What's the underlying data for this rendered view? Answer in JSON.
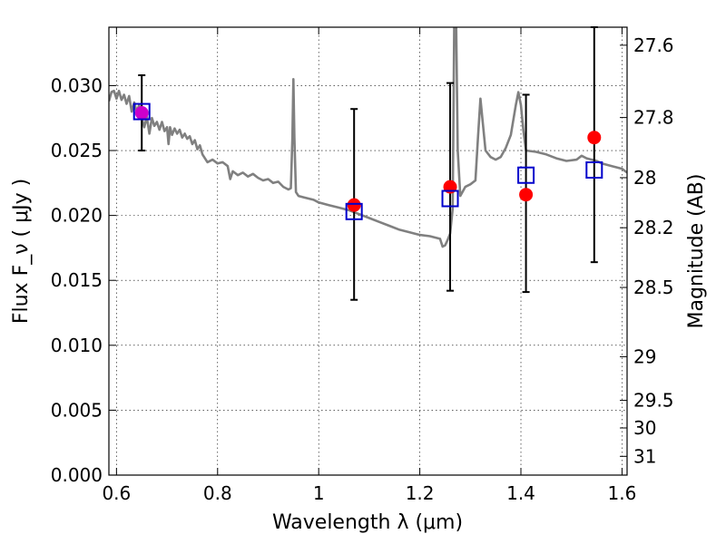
{
  "chart_data": {
    "type": "scatter",
    "xlabel": "Wavelength  λ (μm)",
    "ylabel": "Flux  F_ν  ( μJy )",
    "y2label": "Magnitude (AB)",
    "xlim": [
      0.585,
      1.61
    ],
    "ylim": [
      0.0,
      0.0345
    ],
    "grid": true,
    "x_ticks": [
      {
        "value": 0.6,
        "label": "0.6"
      },
      {
        "value": 0.8,
        "label": "0.8"
      },
      {
        "value": 1.0,
        "label": "1"
      },
      {
        "value": 1.2,
        "label": "1.2"
      },
      {
        "value": 1.4,
        "label": "1.4"
      },
      {
        "value": 1.6,
        "label": "1.6"
      }
    ],
    "y_ticks": [
      {
        "value": 0.0,
        "label": "0.000"
      },
      {
        "value": 0.005,
        "label": "0.005"
      },
      {
        "value": 0.01,
        "label": "0.010"
      },
      {
        "value": 0.015,
        "label": "0.015"
      },
      {
        "value": 0.02,
        "label": "0.020"
      },
      {
        "value": 0.025,
        "label": "0.025"
      },
      {
        "value": 0.03,
        "label": "0.030"
      }
    ],
    "mag_ticks": [
      {
        "value": 27.6,
        "label": "27.6"
      },
      {
        "value": 27.8,
        "label": "27.8"
      },
      {
        "value": 28.0,
        "label": "28"
      },
      {
        "value": 28.2,
        "label": "28.2"
      },
      {
        "value": 28.5,
        "label": "28.5"
      },
      {
        "value": 29.0,
        "label": "29"
      },
      {
        "value": 29.5,
        "label": "29.5"
      },
      {
        "value": 30.0,
        "label": "30"
      },
      {
        "value": 31.0,
        "label": "31"
      }
    ],
    "model_spectrum": {
      "color": "#808080",
      "points": [
        [
          0.585,
          0.0288
        ],
        [
          0.59,
          0.0295
        ],
        [
          0.595,
          0.0296
        ],
        [
          0.6,
          0.029
        ],
        [
          0.605,
          0.0296
        ],
        [
          0.61,
          0.0289
        ],
        [
          0.615,
          0.0293
        ],
        [
          0.62,
          0.0286
        ],
        [
          0.625,
          0.0292
        ],
        [
          0.63,
          0.028
        ],
        [
          0.635,
          0.0287
        ],
        [
          0.64,
          0.028
        ],
        [
          0.645,
          0.0285
        ],
        [
          0.65,
          0.0275
        ],
        [
          0.655,
          0.0268
        ],
        [
          0.66,
          0.0276
        ],
        [
          0.665,
          0.0263
        ],
        [
          0.67,
          0.0275
        ],
        [
          0.675,
          0.0269
        ],
        [
          0.68,
          0.0272
        ],
        [
          0.685,
          0.0266
        ],
        [
          0.69,
          0.0272
        ],
        [
          0.695,
          0.0265
        ],
        [
          0.7,
          0.0268
        ],
        [
          0.703,
          0.0255
        ],
        [
          0.706,
          0.0268
        ],
        [
          0.71,
          0.0262
        ],
        [
          0.715,
          0.0267
        ],
        [
          0.72,
          0.0263
        ],
        [
          0.725,
          0.0266
        ],
        [
          0.73,
          0.026
        ],
        [
          0.735,
          0.0263
        ],
        [
          0.74,
          0.0259
        ],
        [
          0.745,
          0.0261
        ],
        [
          0.75,
          0.0255
        ],
        [
          0.755,
          0.0258
        ],
        [
          0.76,
          0.0251
        ],
        [
          0.765,
          0.0254
        ],
        [
          0.77,
          0.0247
        ],
        [
          0.78,
          0.0241
        ],
        [
          0.79,
          0.0243
        ],
        [
          0.8,
          0.024
        ],
        [
          0.81,
          0.0241
        ],
        [
          0.82,
          0.0238
        ],
        [
          0.825,
          0.0228
        ],
        [
          0.83,
          0.0234
        ],
        [
          0.84,
          0.0231
        ],
        [
          0.85,
          0.0233
        ],
        [
          0.86,
          0.023
        ],
        [
          0.87,
          0.0232
        ],
        [
          0.88,
          0.0229
        ],
        [
          0.89,
          0.0227
        ],
        [
          0.9,
          0.0228
        ],
        [
          0.91,
          0.0225
        ],
        [
          0.92,
          0.0226
        ],
        [
          0.93,
          0.0222
        ],
        [
          0.94,
          0.022
        ],
        [
          0.945,
          0.0221
        ],
        [
          0.948,
          0.026
        ],
        [
          0.95,
          0.0305
        ],
        [
          0.952,
          0.026
        ],
        [
          0.955,
          0.0218
        ],
        [
          0.96,
          0.0215
        ],
        [
          0.97,
          0.0214
        ],
        [
          0.98,
          0.0213
        ],
        [
          0.99,
          0.0212
        ],
        [
          1.0,
          0.021
        ],
        [
          1.02,
          0.0208
        ],
        [
          1.04,
          0.0206
        ],
        [
          1.06,
          0.0204
        ],
        [
          1.08,
          0.0201
        ],
        [
          1.1,
          0.0198
        ],
        [
          1.12,
          0.0195
        ],
        [
          1.14,
          0.0192
        ],
        [
          1.16,
          0.0189
        ],
        [
          1.18,
          0.0187
        ],
        [
          1.2,
          0.0185
        ],
        [
          1.22,
          0.0184
        ],
        [
          1.24,
          0.0182
        ],
        [
          1.245,
          0.0176
        ],
        [
          1.25,
          0.0177
        ],
        [
          1.255,
          0.0181
        ],
        [
          1.26,
          0.0186
        ],
        [
          1.265,
          0.0205
        ],
        [
          1.268,
          0.0345
        ],
        [
          1.272,
          0.0345
        ],
        [
          1.275,
          0.025
        ],
        [
          1.28,
          0.0215
        ],
        [
          1.29,
          0.0222
        ],
        [
          1.3,
          0.0224
        ],
        [
          1.31,
          0.0227
        ],
        [
          1.315,
          0.026
        ],
        [
          1.32,
          0.029
        ],
        [
          1.325,
          0.027
        ],
        [
          1.33,
          0.025
        ],
        [
          1.34,
          0.0245
        ],
        [
          1.35,
          0.0243
        ],
        [
          1.36,
          0.0245
        ],
        [
          1.37,
          0.0252
        ],
        [
          1.38,
          0.0262
        ],
        [
          1.39,
          0.0285
        ],
        [
          1.395,
          0.0295
        ],
        [
          1.4,
          0.0285
        ],
        [
          1.405,
          0.0265
        ],
        [
          1.41,
          0.025
        ],
        [
          1.43,
          0.0249
        ],
        [
          1.45,
          0.0247
        ],
        [
          1.47,
          0.0244
        ],
        [
          1.49,
          0.0242
        ],
        [
          1.51,
          0.0243
        ],
        [
          1.52,
          0.0246
        ],
        [
          1.53,
          0.0244
        ],
        [
          1.54,
          0.0243
        ],
        [
          1.55,
          0.0242
        ],
        [
          1.56,
          0.024
        ],
        [
          1.58,
          0.0238
        ],
        [
          1.6,
          0.0236
        ],
        [
          1.61,
          0.0233
        ]
      ]
    },
    "synthetic_photometry": {
      "color": "#0000cc",
      "points": [
        {
          "x": 0.65,
          "y": 0.028
        },
        {
          "x": 1.07,
          "y": 0.0203
        },
        {
          "x": 1.26,
          "y": 0.0213
        },
        {
          "x": 1.41,
          "y": 0.0231
        },
        {
          "x": 1.545,
          "y": 0.0235
        }
      ]
    },
    "observed_photometry": {
      "color": "#ff0000",
      "first_point_color": "#cc00cc",
      "points": [
        {
          "x": 0.65,
          "y": 0.0279,
          "err_low": 0.025,
          "err_high": 0.0308
        },
        {
          "x": 1.07,
          "y": 0.0208,
          "err_low": 0.0135,
          "err_high": 0.0282
        },
        {
          "x": 1.26,
          "y": 0.0222,
          "err_low": 0.0142,
          "err_high": 0.0302
        },
        {
          "x": 1.41,
          "y": 0.0216,
          "err_low": 0.0141,
          "err_high": 0.0293
        },
        {
          "x": 1.545,
          "y": 0.026,
          "err_low": 0.0164,
          "err_high": 0.0345
        }
      ]
    }
  }
}
